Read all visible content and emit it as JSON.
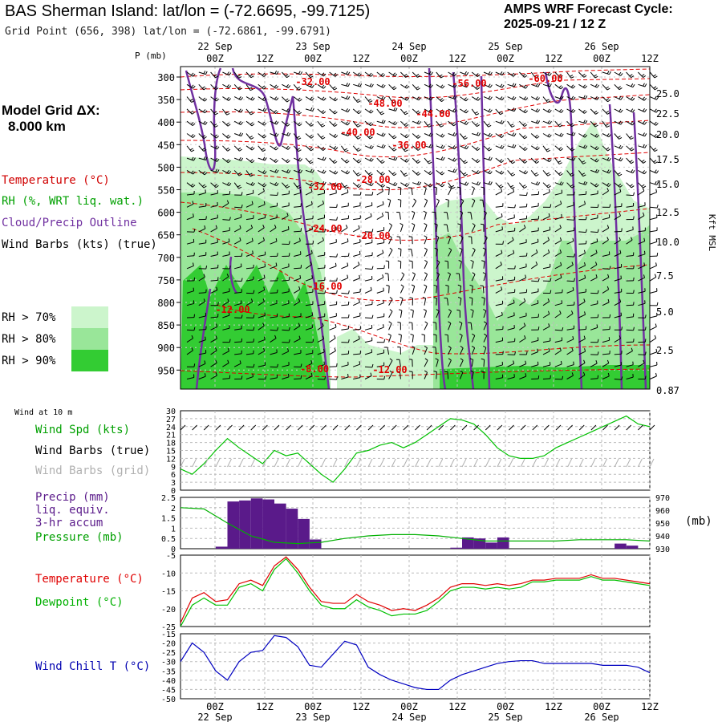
{
  "header": {
    "title": "BAS Sherman Island:  lat/lon = (-72.6695, -99.7125)",
    "grid_point": "Grid Point (656, 398) lat/lon = (-72.6861, -99.6791)",
    "cycle_label": "AMPS WRF Forecast Cycle:",
    "cycle_value": "2025-09-21 / 12  Z"
  },
  "model_grid": {
    "label": "Model Grid ΔX:",
    "value": "8.000 km"
  },
  "cross_section_legend": {
    "temperature": "Temperature (°C)",
    "rh": "RH (%, WRT liq. wat.)",
    "cloud": "Cloud/Precip Outline",
    "wind": "Wind Barbs (kts) (true)",
    "rh70": "RH > 70%",
    "rh80": "RH > 80%",
    "rh90": "RH > 90%"
  },
  "colors": {
    "temp": "#e00000",
    "rh70": "#ccf5cc",
    "rh80": "#99e699",
    "rh90": "#33cc33",
    "cloud": "#7030a0",
    "dewpoint": "#00c000",
    "windchill": "#0000c0",
    "precip": "#5a1a8a"
  },
  "time_axis": {
    "hours": [
      "00Z",
      "12Z",
      "00Z",
      "12Z",
      "00Z",
      "12Z",
      "00Z",
      "12Z",
      "00Z",
      "12Z"
    ],
    "dates": [
      "22 Sep",
      "23 Sep",
      "24 Sep",
      "25 Sep",
      "26 Sep"
    ]
  },
  "pressure_axis": {
    "unit": "P (mb)",
    "levels": [
      "300",
      "350",
      "400",
      "450",
      "500",
      "550",
      "600",
      "650",
      "700",
      "750",
      "800",
      "850",
      "900",
      "950"
    ]
  },
  "height_axis": {
    "unit": "Kft MSL",
    "ticks": [
      "25.0",
      "22.5",
      "20.0",
      "17.5",
      "15.0",
      "12.5",
      "10.0",
      "7.5",
      "5.0",
      "2.5",
      "0.87"
    ]
  },
  "temp_labels": [
    "-32.00",
    "-56.00",
    "-60.00",
    "-48.00",
    "-44.00",
    "-40.00",
    "-36.00",
    "-32.00",
    "-28.00",
    "-24.00",
    "-20.00",
    "-16.00",
    "-12.00",
    "-8.00",
    "-12.00"
  ],
  "panels": {
    "wind10m": {
      "heading": "Wind at 10 m",
      "speed_label": "Wind Spd (kts)",
      "barbs_true": "Wind Barbs (true)",
      "barbs_grid": "Wind Barbs (grid)",
      "yticks": [
        "30",
        "27",
        "24",
        "21",
        "18",
        "15",
        "12",
        "9",
        "6",
        "3",
        "0"
      ]
    },
    "precip": {
      "label1": "Precip (mm)",
      "label2": "liq. equiv.",
      "label3": "3-hr accum",
      "pressure_label": "Pressure (mb)",
      "unit_right": "(mb)",
      "yticks_left": [
        "2.5",
        "2",
        "1.5",
        "1",
        "0.5",
        "0"
      ],
      "yticks_right": [
        "970",
        "960",
        "950",
        "940",
        "930"
      ]
    },
    "temp": {
      "temp_label": "Temperature (°C)",
      "dew_label": "Dewpoint (°C)",
      "yticks": [
        "-5",
        "-10",
        "-15",
        "-20",
        "-25"
      ]
    },
    "windchill": {
      "label": "Wind Chill T (°C)",
      "yticks": [
        "-15",
        "-20",
        "-25",
        "-30",
        "-35",
        "-40",
        "-45",
        "-50"
      ]
    }
  },
  "chart_data": [
    {
      "type": "line",
      "title": "Wind Spd (kts)",
      "x_hours": [
        0,
        3,
        6,
        9,
        12,
        15,
        18,
        21,
        24,
        27,
        30,
        33,
        36,
        39,
        42,
        45,
        48,
        51,
        54,
        57,
        60,
        63,
        66,
        69,
        72,
        75,
        78,
        81,
        84,
        87,
        90,
        93,
        96,
        99,
        102,
        105,
        108,
        111,
        114,
        117,
        120
      ],
      "values": [
        8,
        6,
        10,
        15,
        19.5,
        16,
        13,
        10,
        15,
        13,
        14,
        10,
        6,
        3,
        8,
        14,
        15,
        17,
        18,
        16,
        18,
        21,
        24,
        27,
        26.5,
        25,
        21,
        16,
        13,
        12,
        12,
        13,
        16,
        18,
        20,
        22,
        24,
        26,
        28,
        25,
        24
      ],
      "ylim": [
        0,
        30
      ]
    },
    {
      "type": "bar",
      "title": "Precip (mm) liq. equiv. 3-hr accum",
      "x_start_hours": [
        0,
        9,
        12,
        15,
        18,
        21,
        24,
        27,
        30,
        33,
        36,
        39,
        42,
        45,
        48,
        51,
        54,
        57,
        60,
        63,
        66,
        69,
        72,
        75,
        78,
        81,
        84,
        87,
        90,
        93,
        96,
        99,
        102,
        105,
        108,
        111,
        114,
        117
      ],
      "values": [
        0,
        0.1,
        2.3,
        2.35,
        2.45,
        2.4,
        2.2,
        1.95,
        1.45,
        0.45,
        0,
        0,
        0,
        0,
        0,
        0,
        0,
        0,
        0,
        0,
        0,
        0.05,
        0.55,
        0.5,
        0.3,
        0.55,
        0,
        0,
        0,
        0,
        0,
        0,
        0,
        0,
        0,
        0.25,
        0.15,
        0
      ],
      "ylim": [
        0,
        2.5
      ]
    },
    {
      "type": "line",
      "title": "Pressure (mb)",
      "x_hours": [
        0,
        6,
        12,
        18,
        24,
        30,
        36,
        42,
        48,
        54,
        60,
        66,
        72,
        78,
        84,
        90,
        96,
        102,
        108,
        114,
        120
      ],
      "values": [
        962,
        961,
        950,
        940,
        935,
        934,
        935,
        938,
        940,
        941,
        941,
        940,
        938,
        936,
        936,
        936,
        936,
        937,
        937,
        937,
        936
      ],
      "ylim": [
        930,
        970
      ]
    },
    {
      "type": "line",
      "title": "Temperature / Dewpoint (°C)",
      "x_hours": [
        0,
        3,
        6,
        9,
        12,
        15,
        18,
        21,
        24,
        27,
        30,
        33,
        36,
        39,
        42,
        45,
        48,
        51,
        54,
        57,
        60,
        63,
        66,
        69,
        72,
        75,
        78,
        81,
        84,
        87,
        90,
        93,
        96,
        99,
        102,
        105,
        108,
        111,
        114,
        117,
        120
      ],
      "series": [
        {
          "name": "Temperature",
          "values": [
            -24,
            -17,
            -15.5,
            -18,
            -17.5,
            -13,
            -12,
            -13.5,
            -8,
            -5.5,
            -9,
            -14,
            -18,
            -18.5,
            -18.5,
            -16,
            -18,
            -19,
            -20.5,
            -20,
            -20.5,
            -19,
            -17,
            -14,
            -13,
            -13,
            -13.5,
            -13,
            -13.5,
            -13,
            -12,
            -12,
            -11.5,
            -11.5,
            -11.5,
            -10.5,
            -11.5,
            -11.5,
            -12,
            -12.5,
            -13
          ]
        },
        {
          "name": "Dewpoint",
          "values": [
            -25,
            -19,
            -17,
            -19,
            -19,
            -14,
            -13,
            -15,
            -9,
            -6,
            -10,
            -15,
            -19,
            -20,
            -20,
            -17.5,
            -19.5,
            -20.5,
            -22,
            -21.5,
            -21.5,
            -20.5,
            -18,
            -15,
            -14,
            -14,
            -14.5,
            -14,
            -14.5,
            -14,
            -12.5,
            -12.5,
            -12,
            -12,
            -12,
            -11,
            -12,
            -12,
            -12.5,
            -13,
            -13.5
          ]
        }
      ],
      "ylim": [
        -25,
        -5
      ]
    },
    {
      "type": "line",
      "title": "Wind Chill T (°C)",
      "x_hours": [
        0,
        3,
        6,
        9,
        12,
        15,
        18,
        21,
        24,
        27,
        30,
        33,
        36,
        39,
        42,
        45,
        48,
        51,
        54,
        57,
        60,
        63,
        66,
        69,
        72,
        75,
        78,
        81,
        84,
        87,
        90,
        93,
        96,
        99,
        102,
        105,
        108,
        111,
        114,
        117,
        120
      ],
      "values": [
        -30,
        -20,
        -25,
        -35,
        -40,
        -30,
        -25,
        -24,
        -16,
        -17,
        -22,
        -32,
        -33,
        -26,
        -19,
        -21,
        -33,
        -37,
        -40,
        -42,
        -44,
        -45,
        -45,
        -40,
        -37,
        -35,
        -33,
        -31,
        -30,
        -29.5,
        -29.5,
        -31,
        -31,
        -31,
        -31,
        -31,
        -32,
        -32,
        -32,
        -33,
        -36
      ],
      "ylim": [
        -50,
        -15
      ]
    }
  ]
}
